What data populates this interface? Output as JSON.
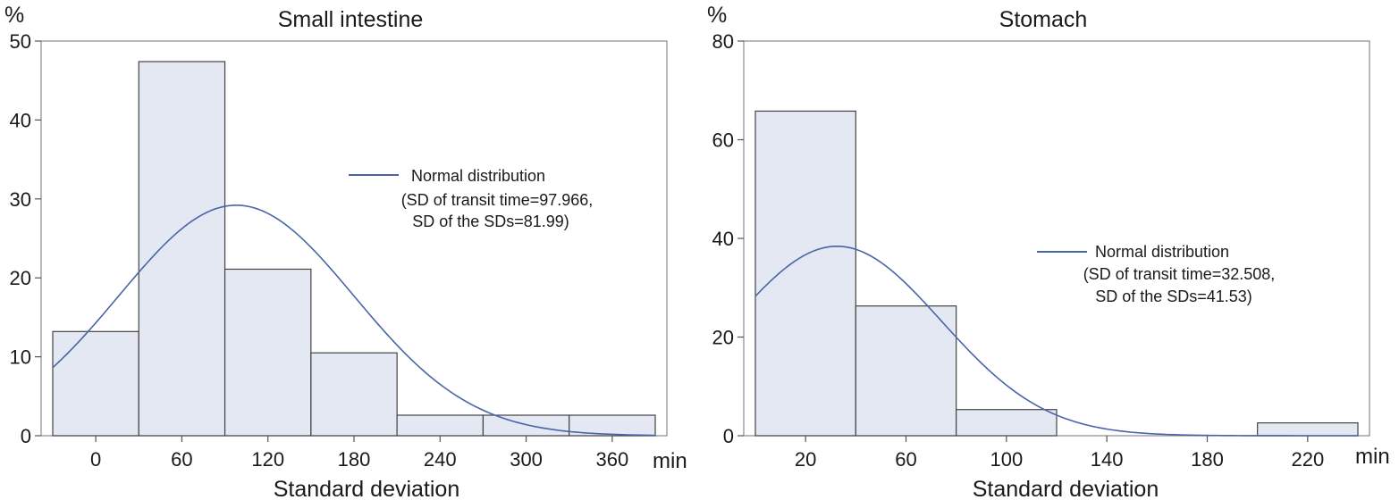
{
  "chart_data": [
    {
      "type": "bar",
      "title": "Small intestine",
      "ylabel": "%",
      "xlabel": "Standard deviation",
      "x_unit": "min",
      "x_ticks": [
        0,
        60,
        120,
        180,
        240,
        300,
        360
      ],
      "x_range": [
        -30,
        390
      ],
      "y_ticks": [
        0,
        10,
        20,
        30,
        40,
        50
      ],
      "ylim": [
        0,
        50
      ],
      "bins": [
        {
          "start": -30,
          "end": 30,
          "value": 13.2
        },
        {
          "start": 30,
          "end": 90,
          "value": 47.4
        },
        {
          "start": 90,
          "end": 150,
          "value": 21.1
        },
        {
          "start": 150,
          "end": 210,
          "value": 10.5
        },
        {
          "start": 210,
          "end": 270,
          "value": 2.6
        },
        {
          "start": 270,
          "end": 330,
          "value": 2.6
        },
        {
          "start": 330,
          "end": 390,
          "value": 2.6
        }
      ],
      "normal_curve": {
        "mean": 97.966,
        "sd": 81.99,
        "peak": 29.2
      },
      "legend": {
        "label": "Normal distribution",
        "line2": "(SD of transit time=97.966,",
        "line3": "SD of the SDs=81.99)"
      },
      "grid": false,
      "colors": {
        "bar_fill": "#e4e8f2",
        "bar_edge": "#444444",
        "curve": "#4a64a8"
      }
    },
    {
      "type": "bar",
      "title": "Stomach",
      "ylabel": "%",
      "xlabel": "Standard deviation",
      "x_unit": "min",
      "x_ticks": [
        20,
        60,
        100,
        140,
        180,
        220
      ],
      "x_range": [
        0,
        240
      ],
      "y_ticks": [
        0,
        20,
        40,
        60,
        80
      ],
      "ylim": [
        0,
        80
      ],
      "bins": [
        {
          "start": 0,
          "end": 40,
          "value": 65.8
        },
        {
          "start": 40,
          "end": 80,
          "value": 26.3
        },
        {
          "start": 80,
          "end": 120,
          "value": 5.3
        },
        {
          "start": 120,
          "end": 160,
          "value": 0
        },
        {
          "start": 160,
          "end": 200,
          "value": 0
        },
        {
          "start": 200,
          "end": 240,
          "value": 2.6
        }
      ],
      "normal_curve": {
        "mean": 32.508,
        "sd": 41.53,
        "peak": 38.4
      },
      "legend": {
        "label": "Normal distribution",
        "line2": "(SD of transit time=32.508,",
        "line3": "SD of the SDs=41.53)"
      },
      "grid": false,
      "colors": {
        "bar_fill": "#e4e8f2",
        "bar_edge": "#444444",
        "curve": "#4a64a8"
      }
    }
  ]
}
